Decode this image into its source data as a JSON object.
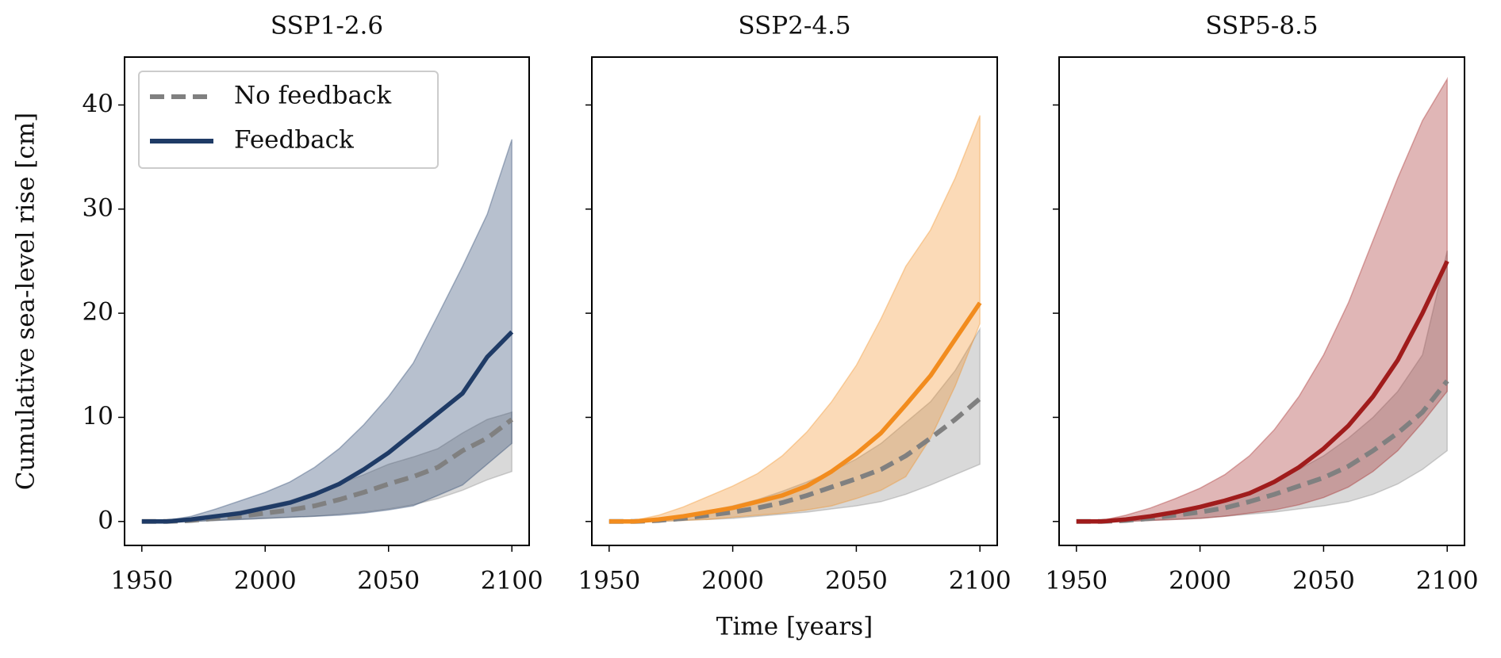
{
  "chart_data": [
    {
      "type": "line",
      "title": "SSP1-2.6",
      "ylabel": "Cumulative sea-level rise [cm]",
      "legend": "upper left",
      "x": [
        1950,
        1960,
        1970,
        1980,
        1990,
        2000,
        2010,
        2020,
        2030,
        2040,
        2050,
        2060,
        2070,
        2080,
        2090,
        2100
      ],
      "xlim": [
        1943,
        2107
      ],
      "xticks": [
        1950,
        2000,
        2050,
        2100
      ],
      "ylim": [
        -2.3,
        44.6
      ],
      "yticks": [
        0,
        10,
        20,
        30,
        40
      ],
      "yticklabels": true,
      "series": [
        {
          "name": "No feedback",
          "color": "#808080",
          "dashed": true,
          "values": [
            0,
            0,
            0.1,
            0.3,
            0.5,
            0.8,
            1.1,
            1.5,
            2.1,
            2.8,
            3.6,
            4.3,
            5.2,
            6.8,
            8.0,
            9.8
          ],
          "band_lower": [
            0,
            0,
            0,
            0.1,
            0.2,
            0.3,
            0.4,
            0.5,
            0.7,
            0.9,
            1.2,
            1.6,
            2.2,
            3.0,
            4.0,
            4.8
          ],
          "band_upper": [
            0,
            0.1,
            0.3,
            0.6,
            1.0,
            1.5,
            2.0,
            2.8,
            3.6,
            4.5,
            5.5,
            6.2,
            7.0,
            8.5,
            9.8,
            10.5
          ]
        },
        {
          "name": "Feedback",
          "color": "#1f3b66",
          "dashed": false,
          "values": [
            0,
            0,
            0.2,
            0.5,
            0.8,
            1.3,
            1.8,
            2.6,
            3.6,
            5.0,
            6.6,
            8.5,
            10.4,
            12.3,
            15.8,
            18.2
          ],
          "band_lower": [
            0,
            0,
            0,
            0.1,
            0.2,
            0.3,
            0.4,
            0.5,
            0.6,
            0.8,
            1.1,
            1.5,
            2.5,
            3.5,
            5.5,
            7.5
          ],
          "band_upper": [
            0,
            0.1,
            0.5,
            1.2,
            2.0,
            2.8,
            3.8,
            5.2,
            7.0,
            9.3,
            12.0,
            15.2,
            19.8,
            24.5,
            29.5,
            36.7
          ]
        }
      ]
    },
    {
      "type": "line",
      "title": "SSP2-4.5",
      "xlabel": "Time [years]",
      "x": [
        1950,
        1960,
        1970,
        1980,
        1990,
        2000,
        2010,
        2020,
        2030,
        2040,
        2050,
        2060,
        2070,
        2080,
        2090,
        2100
      ],
      "xlim": [
        1943,
        2107
      ],
      "xticks": [
        1950,
        2000,
        2050,
        2100
      ],
      "ylim": [
        -2.3,
        44.6
      ],
      "yticks": [
        0,
        10,
        20,
        30,
        40
      ],
      "yticklabels": false,
      "series": [
        {
          "color": "#808080",
          "dashed": true,
          "values": [
            0,
            0,
            0.1,
            0.3,
            0.6,
            0.9,
            1.3,
            1.8,
            2.5,
            3.3,
            4.1,
            5.0,
            6.3,
            8.0,
            9.8,
            11.8
          ],
          "band_lower": [
            0,
            0,
            0,
            0.1,
            0.2,
            0.3,
            0.5,
            0.7,
            0.9,
            1.2,
            1.5,
            1.9,
            2.6,
            3.5,
            4.5,
            5.5
          ],
          "band_upper": [
            0,
            0.1,
            0.3,
            0.6,
            1.0,
            1.5,
            2.1,
            2.9,
            3.8,
            4.8,
            6.0,
            7.5,
            9.5,
            11.5,
            14.5,
            18.5
          ]
        },
        {
          "color": "#f28c1e",
          "dashed": false,
          "values": [
            0,
            0,
            0.2,
            0.5,
            0.9,
            1.3,
            1.9,
            2.5,
            3.4,
            4.8,
            6.5,
            8.5,
            11.2,
            14.0,
            17.5,
            21.0
          ],
          "band_lower": [
            0,
            0,
            0,
            0.1,
            0.2,
            0.4,
            0.6,
            0.8,
            1.1,
            1.5,
            2.2,
            3.0,
            4.3,
            8.0,
            13.0,
            19.0
          ],
          "band_upper": [
            0,
            0.1,
            0.6,
            1.4,
            2.4,
            3.4,
            4.6,
            6.3,
            8.6,
            11.5,
            15.0,
            19.5,
            24.5,
            28.0,
            33.0,
            39.0
          ]
        }
      ]
    },
    {
      "type": "line",
      "title": "SSP5-8.5",
      "x": [
        1950,
        1960,
        1970,
        1980,
        1990,
        2000,
        2010,
        2020,
        2030,
        2040,
        2050,
        2060,
        2070,
        2080,
        2090,
        2100
      ],
      "xlim": [
        1943,
        2107
      ],
      "xticks": [
        1950,
        2000,
        2050,
        2100
      ],
      "ylim": [
        -2.3,
        44.6
      ],
      "yticks": [
        0,
        10,
        20,
        30,
        40
      ],
      "yticklabels": false,
      "series": [
        {
          "color": "#808080",
          "dashed": true,
          "values": [
            0,
            0,
            0.1,
            0.3,
            0.6,
            0.9,
            1.3,
            1.9,
            2.6,
            3.4,
            4.2,
            5.3,
            6.8,
            8.5,
            10.5,
            13.5
          ],
          "band_lower": [
            0,
            0,
            0,
            0.1,
            0.2,
            0.3,
            0.5,
            0.7,
            0.9,
            1.2,
            1.5,
            1.9,
            2.6,
            3.6,
            5.0,
            6.8
          ],
          "band_upper": [
            0,
            0.1,
            0.3,
            0.6,
            1.0,
            1.5,
            2.1,
            2.9,
            3.8,
            5.0,
            6.3,
            8.0,
            10.0,
            12.5,
            16.0,
            26.0
          ]
        },
        {
          "color": "#a01c1c",
          "dashed": false,
          "values": [
            0,
            0,
            0.2,
            0.5,
            0.9,
            1.4,
            2.0,
            2.7,
            3.8,
            5.2,
            7.0,
            9.2,
            12.0,
            15.5,
            20.0,
            25.0
          ],
          "band_lower": [
            0,
            0,
            0,
            0.1,
            0.2,
            0.3,
            0.5,
            0.8,
            1.1,
            1.6,
            2.3,
            3.3,
            4.8,
            6.8,
            9.5,
            12.5
          ],
          "band_upper": [
            0,
            0.1,
            0.6,
            1.3,
            2.2,
            3.2,
            4.5,
            6.3,
            8.8,
            12.0,
            16.0,
            21.0,
            27.0,
            33.0,
            38.5,
            42.5
          ]
        }
      ]
    }
  ]
}
